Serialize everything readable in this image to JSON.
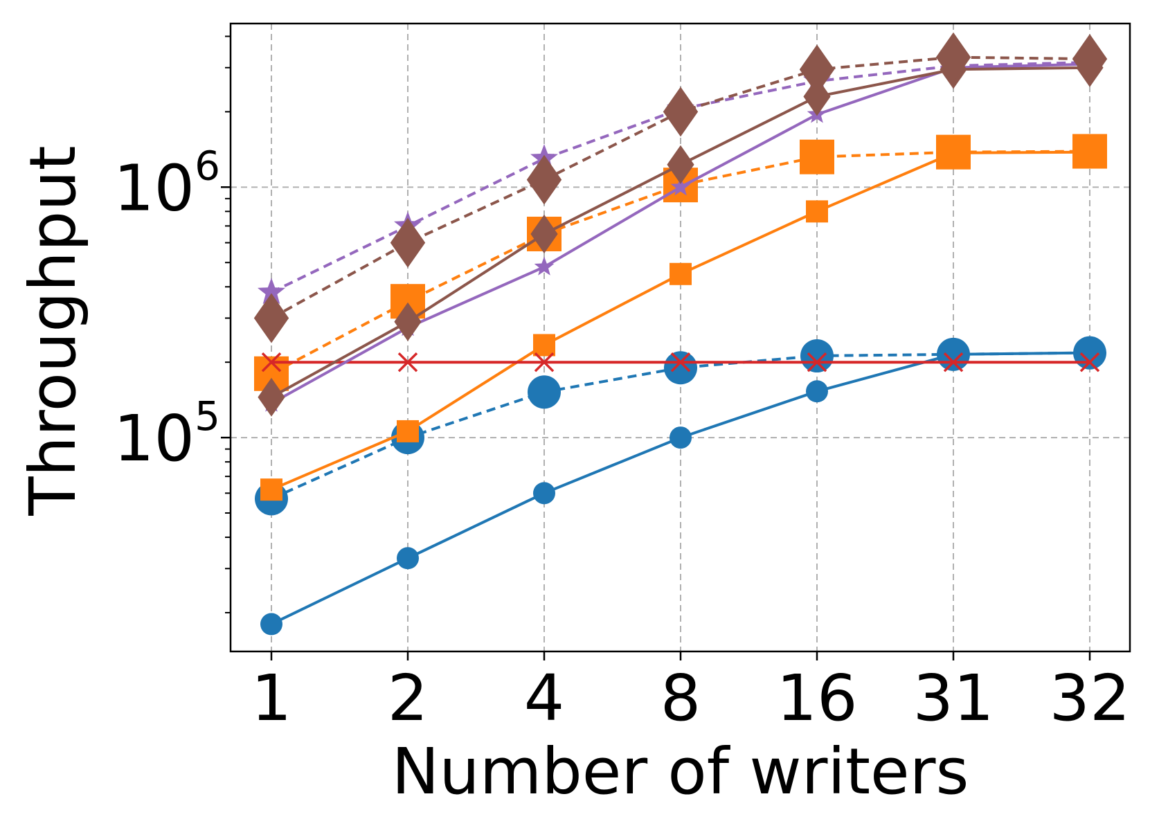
{
  "chart_data": {
    "type": "line",
    "title": "",
    "xlabel": "Number of writers",
    "ylabel": "Throughput",
    "y_scale": "log",
    "ylim": [
      14000,
      4500000
    ],
    "grid": true,
    "legend": "none",
    "categories": [
      "1",
      "2",
      "4",
      "8",
      "16",
      "31",
      "32"
    ],
    "y_ticks": [
      {
        "value": 100000,
        "base": "10",
        "exp": "5"
      },
      {
        "value": 1000000,
        "base": "10",
        "exp": "6"
      }
    ],
    "series": [
      {
        "color": "#1f77b4",
        "dash": "solid",
        "marker": "circle",
        "marker_scale": "small",
        "values": [
          18000,
          33000,
          60000,
          100000,
          153000,
          215000,
          218000
        ]
      },
      {
        "color": "#1f77b4",
        "dash": "dashed",
        "marker": "circle",
        "marker_scale": "large",
        "values": [
          57000,
          100000,
          152000,
          190000,
          212000,
          215000,
          218000
        ]
      },
      {
        "color": "#ff7f0e",
        "dash": "solid",
        "marker": "square",
        "marker_scale": "small",
        "values": [
          62000,
          106000,
          234000,
          450000,
          800000,
          1370000,
          1380000
        ]
      },
      {
        "color": "#ff7f0e",
        "dash": "dashed",
        "marker": "square",
        "marker_scale": "large",
        "values": [
          180000,
          350000,
          650000,
          1020000,
          1320000,
          1380000,
          1390000
        ]
      },
      {
        "color": "#d62728",
        "dash": "solid",
        "marker": "x",
        "marker_scale": "small",
        "values": [
          200000,
          200000,
          200000,
          200000,
          200000,
          200000,
          200000
        ]
      },
      {
        "color": "#9467bd",
        "dash": "solid",
        "marker": "star",
        "marker_scale": "small",
        "values": [
          137000,
          275000,
          480000,
          1000000,
          1950000,
          3000000,
          3100000
        ]
      },
      {
        "color": "#9467bd",
        "dash": "dashed",
        "marker": "star",
        "marker_scale": "large",
        "values": [
          380000,
          700000,
          1300000,
          2050000,
          2650000,
          3050000,
          3150000
        ]
      },
      {
        "color": "#8c564b",
        "dash": "solid",
        "marker": "diamond",
        "marker_scale": "small",
        "values": [
          145000,
          290000,
          650000,
          1230000,
          2300000,
          2950000,
          3000000
        ]
      },
      {
        "color": "#8c564b",
        "dash": "dashed",
        "marker": "diamond",
        "marker_scale": "large",
        "values": [
          300000,
          600000,
          1070000,
          2000000,
          2950000,
          3300000,
          3250000
        ]
      }
    ]
  }
}
